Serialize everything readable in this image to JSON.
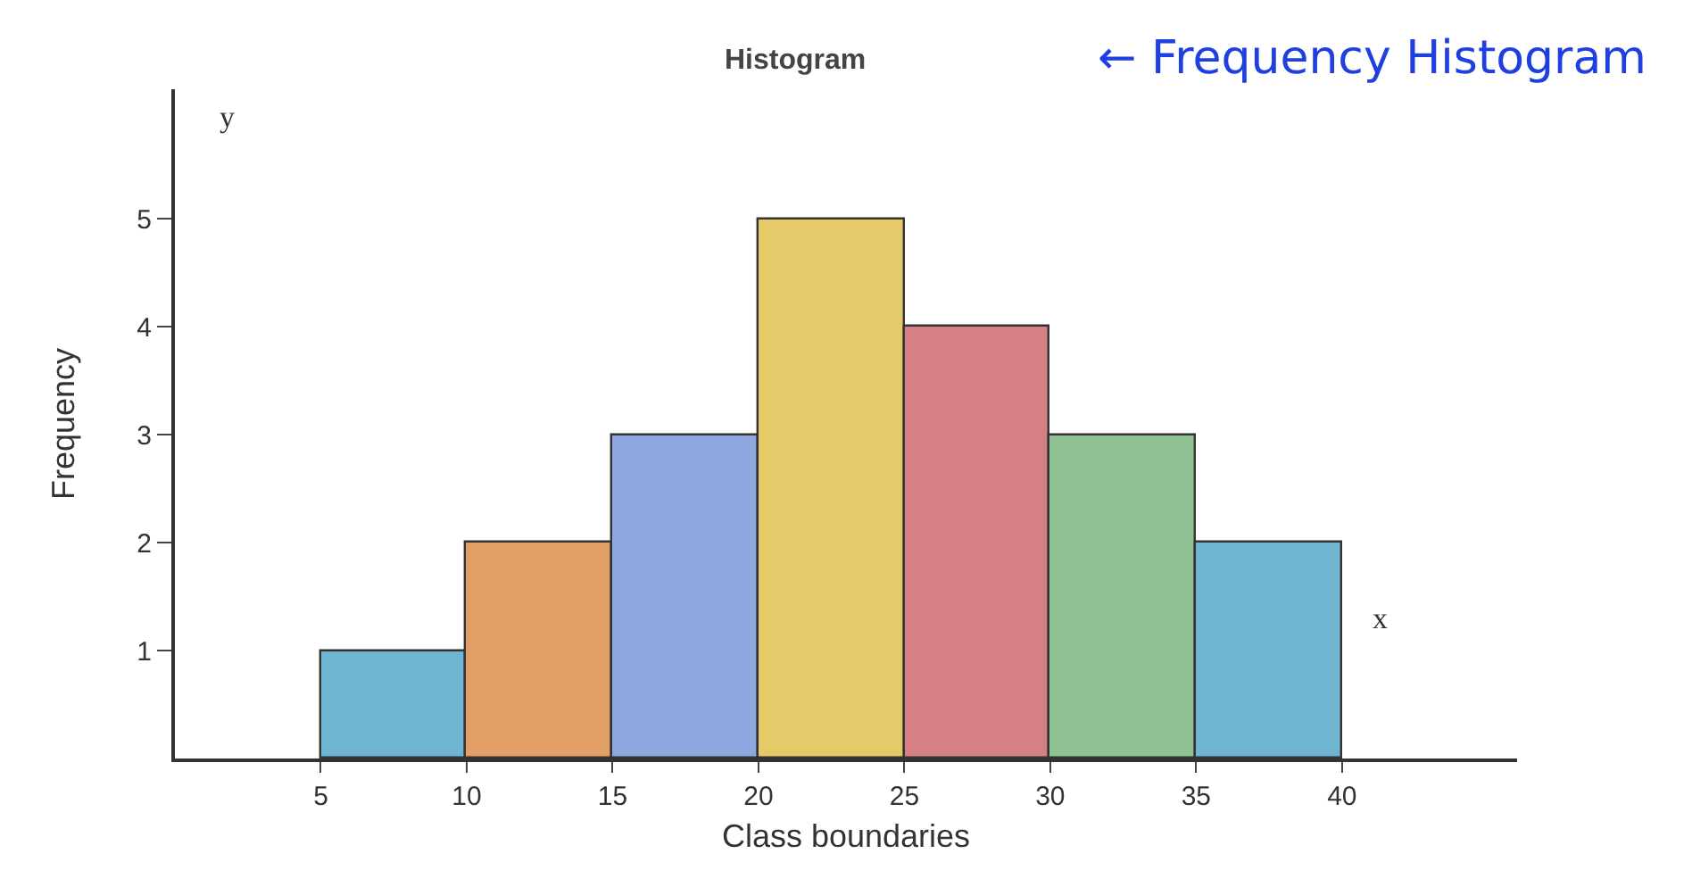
{
  "chart_data": {
    "type": "histogram",
    "title": "Histogram",
    "xlabel": "Class boundaries",
    "ylabel": "Frequency",
    "bins": [
      5,
      10,
      15,
      20,
      25,
      30,
      35,
      40
    ],
    "values": [
      1,
      2,
      3,
      5,
      4,
      3,
      2
    ],
    "colors": [
      "#6fb5d1",
      "#e3a066",
      "#8ea8df",
      "#e5ca6a",
      "#d58184",
      "#8fc195",
      "#6fb5d1"
    ],
    "xlim": [
      0,
      46
    ],
    "ylim": [
      0,
      6.2
    ],
    "xticks": [
      5,
      10,
      15,
      20,
      25,
      30,
      35,
      40
    ],
    "yticks": [
      1,
      2,
      3,
      4,
      5
    ],
    "annotations": [
      "← Frequency Histogram",
      "y",
      "x"
    ]
  }
}
